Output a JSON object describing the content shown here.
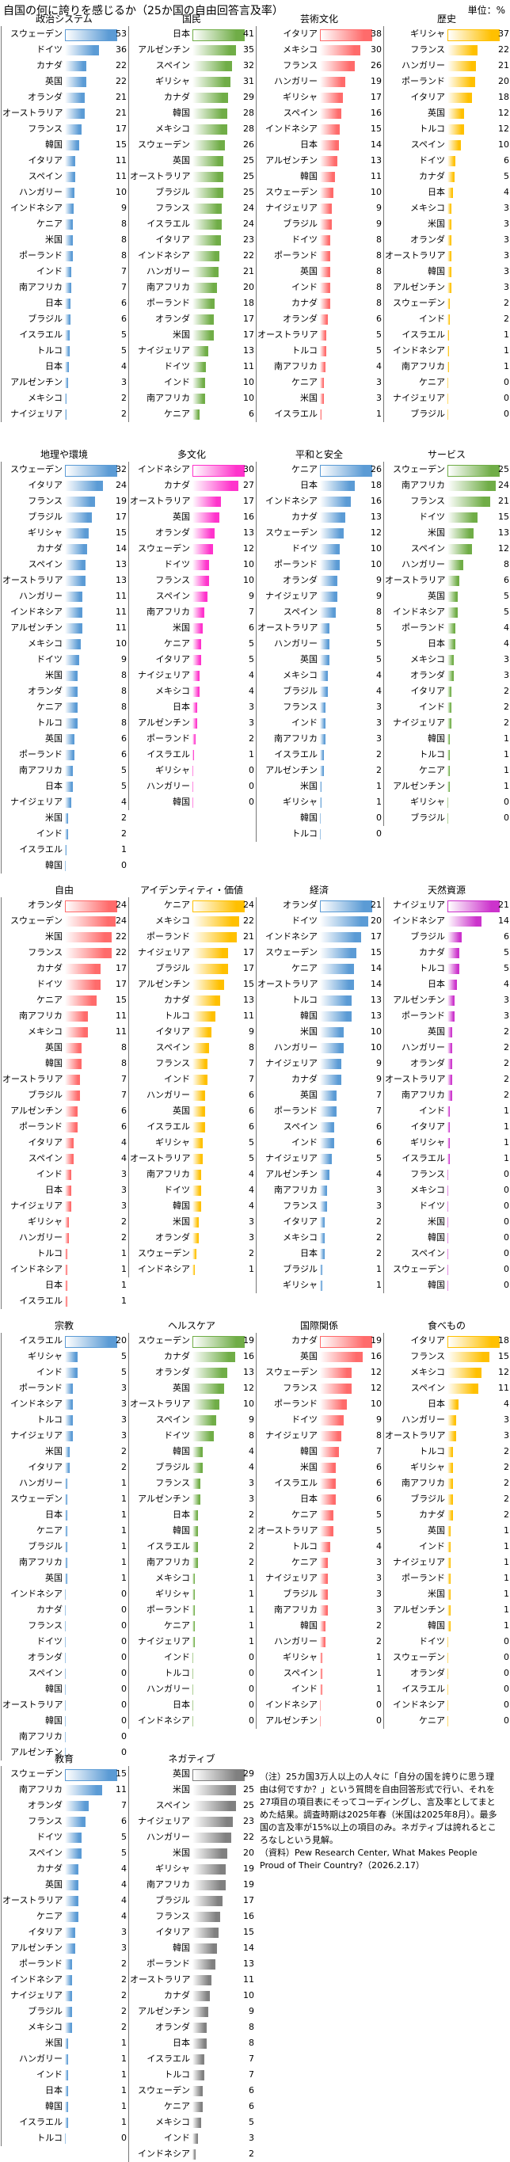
{
  "title": "自国の何に誇りを感じるか（25か国の自由回答言及率）",
  "unit": "単位：%",
  "chart_data": [
    {
      "type": "bar",
      "title": "政治システム",
      "color": "#5b9bd5",
      "categories": [
        "スウェーデン",
        "ドイツ",
        "カナダ",
        "英国",
        "オランダ",
        "オーストラリア",
        "フランス",
        "韓国",
        "イタリア",
        "スペイン",
        "ハンガリー",
        "インドネシア",
        "ケニア",
        "米国",
        "ポーランド",
        "インド",
        "南アフリカ",
        "日本",
        "ブラジル",
        "イスラエル",
        "トルコ",
        "日本",
        "アルゼンチン",
        "メキシコ",
        "ナイジェリア"
      ],
      "values": [
        53,
        36,
        22,
        22,
        21,
        21,
        17,
        15,
        11,
        11,
        10,
        9,
        8,
        8,
        8,
        7,
        7,
        6,
        6,
        5,
        5,
        4,
        3,
        2,
        2
      ]
    },
    {
      "type": "bar",
      "title": "国民",
      "color": "#70ad47",
      "categories": [
        "日本",
        "アルゼンチン",
        "スペイン",
        "ギリシャ",
        "カナダ",
        "韓国",
        "メキシコ",
        "スウェーデン",
        "英国",
        "オーストラリア",
        "ブラジル",
        "フランス",
        "イスラエル",
        "イタリア",
        "インドネシア",
        "ハンガリー",
        "南アフリカ",
        "ポーランド",
        "オランダ",
        "米国",
        "ナイジェリア",
        "ドイツ",
        "インド",
        "南アフリカ",
        "ケニア"
      ],
      "values": [
        41,
        35,
        32,
        31,
        29,
        28,
        28,
        26,
        25,
        25,
        25,
        24,
        24,
        23,
        22,
        21,
        20,
        18,
        17,
        17,
        13,
        11,
        10,
        10,
        6
      ]
    },
    {
      "type": "bar",
      "title": "芸術文化",
      "color": "#ff6b6b",
      "categories": [
        "イタリア",
        "メキシコ",
        "フランス",
        "ハンガリー",
        "ギリシャ",
        "スペイン",
        "インドネシア",
        "日本",
        "アルゼンチン",
        "韓国",
        "スウェーデン",
        "ナイジェリア",
        "ブラジル",
        "ドイツ",
        "ポーランド",
        "英国",
        "インド",
        "カナダ",
        "オランダ",
        "オーストラリア",
        "トルコ",
        "南アフリカ",
        "ケニア",
        "米国",
        "イスラエル"
      ],
      "values": [
        38,
        30,
        26,
        19,
        17,
        16,
        15,
        14,
        13,
        11,
        10,
        9,
        9,
        8,
        8,
        8,
        8,
        8,
        6,
        5,
        5,
        4,
        3,
        3,
        1
      ]
    },
    {
      "type": "bar",
      "title": "歴史",
      "color": "#ffc000",
      "categories": [
        "ギリシャ",
        "フランス",
        "ハンガリー",
        "ポーランド",
        "イタリア",
        "英国",
        "トルコ",
        "スペイン",
        "ドイツ",
        "カナダ",
        "日本",
        "メキシコ",
        "米国",
        "オランダ",
        "オーストラリア",
        "韓国",
        "アルゼンチン",
        "スウェーデン",
        "インド",
        "イスラエル",
        "インドネシア",
        "南アフリカ",
        "ケニア",
        "ナイジェリア",
        "ブラジル"
      ],
      "values": [
        37,
        22,
        21,
        20,
        18,
        12,
        12,
        10,
        6,
        5,
        4,
        3,
        3,
        3,
        3,
        3,
        3,
        2,
        2,
        1,
        1,
        1,
        0,
        0,
        0
      ]
    },
    {
      "type": "bar",
      "title": "地理や環境",
      "color": "#5b9bd5",
      "categories": [
        "スウェーデン",
        "イタリア",
        "フランス",
        "ブラジル",
        "ギリシャ",
        "カナダ",
        "スペイン",
        "オーストラリア",
        "ハンガリー",
        "インドネシア",
        "アルゼンチン",
        "メキシコ",
        "ドイツ",
        "米国",
        "オランダ",
        "ケニア",
        "トルコ",
        "英国",
        "ポーランド",
        "南アフリカ",
        "日本",
        "ナイジェリア",
        "米国",
        "インド",
        "イスラエル",
        "韓国"
      ],
      "values": [
        32,
        24,
        19,
        17,
        15,
        14,
        13,
        13,
        11,
        11,
        11,
        10,
        9,
        8,
        8,
        8,
        8,
        6,
        6,
        5,
        5,
        4,
        2,
        2,
        1,
        0
      ]
    },
    {
      "type": "bar",
      "title": "多文化",
      "color": "#ff33cc",
      "categories": [
        "インドネシア",
        "カナダ",
        "オーストラリア",
        "英国",
        "オランダ",
        "スウェーデン",
        "ドイツ",
        "フランス",
        "スペイン",
        "南アフリカ",
        "米国",
        "ケニア",
        "イタリア",
        "ナイジェリア",
        "メキシコ",
        "日本",
        "アルゼンチン",
        "ポーランド",
        "イスラエル",
        "ギリシャ",
        "ハンガリー",
        "韓国"
      ],
      "values": [
        30,
        27,
        17,
        16,
        13,
        12,
        10,
        10,
        9,
        7,
        6,
        5,
        5,
        4,
        4,
        3,
        3,
        2,
        1,
        0,
        0,
        0
      ]
    },
    {
      "type": "bar",
      "title": "平和と安全",
      "color": "#5b9bd5",
      "categories": [
        "ケニア",
        "日本",
        "インドネシア",
        "カナダ",
        "スウェーデン",
        "ドイツ",
        "ポーランド",
        "オランダ",
        "ナイジェリア",
        "スペイン",
        "オーストラリア",
        "ハンガリー",
        "英国",
        "メキシコ",
        "ブラジル",
        "フランス",
        "インド",
        "南アフリカ",
        "イスラエル",
        "アルゼンチン",
        "米国",
        "ギリシャ",
        "韓国",
        "トルコ"
      ],
      "values": [
        26,
        18,
        16,
        13,
        12,
        10,
        10,
        9,
        9,
        8,
        5,
        5,
        5,
        4,
        4,
        3,
        3,
        3,
        2,
        2,
        1,
        1,
        0,
        0
      ]
    },
    {
      "type": "bar",
      "title": "サービス",
      "color": "#70ad47",
      "categories": [
        "スウェーデン",
        "南アフリカ",
        "フランス",
        "ドイツ",
        "米国",
        "スペイン",
        "ハンガリー",
        "オーストラリア",
        "英国",
        "インドネシア",
        "ポーランド",
        "日本",
        "メキシコ",
        "オランダ",
        "イタリア",
        "インド",
        "ナイジェリア",
        "韓国",
        "トルコ",
        "ケニア",
        "アルゼンチン",
        "ギリシャ",
        "ブラジル"
      ],
      "values": [
        25,
        24,
        21,
        15,
        13,
        12,
        8,
        6,
        5,
        5,
        4,
        4,
        3,
        3,
        2,
        2,
        2,
        1,
        1,
        1,
        1,
        0,
        0
      ]
    },
    {
      "type": "bar",
      "title": "自由",
      "color": "#ff6b6b",
      "categories": [
        "オランダ",
        "スウェーデン",
        "米国",
        "フランス",
        "カナダ",
        "ドイツ",
        "ケニア",
        "南アフリカ",
        "メキシコ",
        "英国",
        "韓国",
        "オーストラリア",
        "ブラジル",
        "アルゼンチン",
        "ポーランド",
        "イタリア",
        "スペイン",
        "インド",
        "日本",
        "ナイジェリア",
        "ギリシャ",
        "ハンガリー",
        "トルコ",
        "インドネシア",
        "日本",
        "イスラエル"
      ],
      "values": [
        24,
        24,
        22,
        22,
        17,
        17,
        15,
        11,
        11,
        8,
        8,
        7,
        7,
        6,
        6,
        4,
        4,
        3,
        3,
        3,
        2,
        2,
        1,
        1,
        1,
        1
      ]
    },
    {
      "type": "bar",
      "title": "アイデンティティ・価値",
      "color": "#ffc000",
      "categories": [
        "ケニア",
        "メキシコ",
        "ポーランド",
        "ナイジェリア",
        "ブラジル",
        "アルゼンチン",
        "カナダ",
        "トルコ",
        "イタリア",
        "スペイン",
        "フランス",
        "インド",
        "ハンガリー",
        "英国",
        "イスラエル",
        "ギリシャ",
        "オーストラリア",
        "南アフリカ",
        "ドイツ",
        "韓国",
        "米国",
        "オランダ",
        "スウェーデン",
        "インドネシア"
      ],
      "values": [
        24,
        22,
        21,
        17,
        17,
        15,
        13,
        11,
        9,
        8,
        7,
        7,
        6,
        6,
        6,
        5,
        5,
        4,
        4,
        4,
        3,
        3,
        2,
        1
      ]
    },
    {
      "type": "bar",
      "title": "経済",
      "color": "#5b9bd5",
      "categories": [
        "オランダ",
        "ドイツ",
        "インドネシア",
        "スウェーデン",
        "ケニア",
        "オーストラリア",
        "トルコ",
        "韓国",
        "米国",
        "ハンガリー",
        "ナイジェリア",
        "カナダ",
        "英国",
        "ポーランド",
        "スペイン",
        "インド",
        "ナイジェリア",
        "アルゼンチン",
        "南アフリカ",
        "フランス",
        "イタリア",
        "メキシコ",
        "日本",
        "ブラジル",
        "ギリシャ"
      ],
      "values": [
        21,
        20,
        17,
        15,
        14,
        14,
        13,
        13,
        10,
        10,
        9,
        9,
        7,
        7,
        6,
        6,
        5,
        4,
        3,
        3,
        2,
        2,
        2,
        1,
        1
      ]
    },
    {
      "type": "bar",
      "title": "天然資源",
      "color": "#cc33cc",
      "categories": [
        "ナイジェリア",
        "インドネシア",
        "ブラジル",
        "カナダ",
        "トルコ",
        "日本",
        "アルゼンチン",
        "ポーランド",
        "英国",
        "ハンガリー",
        "オランダ",
        "オーストラリア",
        "南アフリカ",
        "インド",
        "イタリア",
        "ギリシャ",
        "イスラエル",
        "フランス",
        "メキシコ",
        "ドイツ",
        "米国",
        "韓国",
        "スペイン",
        "スウェーデン",
        "韓国"
      ],
      "values": [
        21,
        14,
        6,
        5,
        5,
        4,
        3,
        3,
        2,
        2,
        2,
        2,
        2,
        1,
        1,
        1,
        1,
        0,
        0,
        0,
        0,
        0,
        0,
        0,
        0
      ]
    },
    {
      "type": "bar",
      "title": "宗教",
      "color": "#5b9bd5",
      "categories": [
        "イスラエル",
        "ギリシャ",
        "インド",
        "ポーランド",
        "インドネシア",
        "トルコ",
        "ナイジェリア",
        "米国",
        "イタリア",
        "ハンガリー",
        "スウェーデン",
        "日本",
        "ケニア",
        "ブラジル",
        "南アフリカ",
        "英国",
        "インドネシア",
        "カナダ",
        "フランス",
        "ドイツ",
        "オランダ",
        "スペイン",
        "韓国",
        "オーストラリア",
        "韓国",
        "南アフリカ",
        "アルゼンチン"
      ],
      "values": [
        20,
        5,
        5,
        3,
        3,
        3,
        3,
        2,
        2,
        1,
        1,
        1,
        1,
        1,
        1,
        1,
        0,
        0,
        0,
        0,
        0,
        0,
        0,
        0,
        0,
        0,
        0
      ]
    },
    {
      "type": "bar",
      "title": "ヘルスケア",
      "color": "#70ad47",
      "categories": [
        "スウェーデン",
        "カナダ",
        "オランダ",
        "英国",
        "オーストラリア",
        "スペイン",
        "ドイツ",
        "韓国",
        "ブラジル",
        "フランス",
        "アルゼンチン",
        "日本",
        "韓国",
        "イスラエル",
        "南アフリカ",
        "メキシコ",
        "ギリシャ",
        "ポーランド",
        "ケニア",
        "ナイジェリア",
        "インド",
        "トルコ",
        "ハンガリー",
        "日本",
        "インドネシア"
      ],
      "values": [
        19,
        16,
        13,
        12,
        10,
        9,
        8,
        4,
        4,
        3,
        3,
        2,
        2,
        2,
        2,
        1,
        1,
        1,
        1,
        1,
        0,
        0,
        0,
        0,
        0
      ]
    },
    {
      "type": "bar",
      "title": "国際関係",
      "color": "#ff6b6b",
      "categories": [
        "カナダ",
        "英国",
        "スウェーデン",
        "フランス",
        "ポーランド",
        "ドイツ",
        "ナイジェリア",
        "韓国",
        "米国",
        "イスラエル",
        "日本",
        "ケニア",
        "オーストラリア",
        "トルコ",
        "ケニア",
        "ナイジェリア",
        "ブラジル",
        "南アフリカ",
        "韓国",
        "ハンガリー",
        "ギリシャ",
        "スペイン",
        "インド",
        "インドネシア",
        "アルゼンチン"
      ],
      "values": [
        19,
        16,
        12,
        12,
        10,
        9,
        8,
        7,
        6,
        6,
        6,
        5,
        5,
        4,
        3,
        3,
        3,
        3,
        2,
        2,
        1,
        1,
        1,
        0,
        0
      ]
    },
    {
      "type": "bar",
      "title": "食べもの",
      "color": "#ffc000",
      "categories": [
        "イタリア",
        "フランス",
        "メキシコ",
        "スペイン",
        "日本",
        "ハンガリー",
        "オーストラリア",
        "トルコ",
        "ギリシャ",
        "南アフリカ",
        "ブラジル",
        "カナダ",
        "英国",
        "インド",
        "ナイジェリア",
        "ポーランド",
        "米国",
        "アルゼンチン",
        "韓国",
        "ドイツ",
        "スウェーデン",
        "オランダ",
        "イスラエル",
        "インドネシア",
        "ケニア"
      ],
      "values": [
        18,
        15,
        12,
        11,
        4,
        3,
        3,
        2,
        2,
        2,
        2,
        2,
        1,
        1,
        1,
        1,
        1,
        1,
        1,
        0,
        0,
        0,
        0,
        0,
        0
      ]
    },
    {
      "type": "bar",
      "title": "教育",
      "color": "#5b9bd5",
      "categories": [
        "スウェーデン",
        "南アフリカ",
        "オランダ",
        "フランス",
        "ドイツ",
        "スペイン",
        "カナダ",
        "英国",
        "オーストラリア",
        "ケニア",
        "イタリア",
        "アルゼンチン",
        "ポーランド",
        "インドネシア",
        "ナイジェリア",
        "ブラジル",
        "メキシコ",
        "米国",
        "ハンガリー",
        "インド",
        "日本",
        "韓国",
        "イスラエル",
        "トルコ"
      ],
      "values": [
        15,
        11,
        7,
        6,
        5,
        5,
        4,
        4,
        4,
        4,
        3,
        3,
        2,
        2,
        2,
        2,
        2,
        1,
        1,
        1,
        1,
        1,
        1,
        0
      ]
    },
    {
      "type": "bar",
      "title": "ネガティブ",
      "color": "#808080",
      "categories": [
        "英国",
        "米国",
        "スペイン",
        "ナイジェリア",
        "ハンガリー",
        "米国",
        "ギリシャ",
        "南アフリカ",
        "ブラジル",
        "フランス",
        "イタリア",
        "韓国",
        "ポーランド",
        "オーストラリア",
        "カナダ",
        "アルゼンチン",
        "オランダ",
        "日本",
        "イスラエル",
        "トルコ",
        "スウェーデン",
        "ケニア",
        "メキシコ",
        "インド",
        "インドネシア"
      ],
      "values": [
        29,
        25,
        25,
        23,
        22,
        20,
        19,
        19,
        17,
        16,
        15,
        14,
        13,
        11,
        10,
        9,
        8,
        8,
        7,
        7,
        6,
        6,
        5,
        3,
        2
      ]
    }
  ],
  "notes": [
    "（注）25カ国3万人以上の人々に「自分の国を誇りに思う理由は何ですか？」という質問を自由回答形式で行い、それを27項目の項目表にそってコーディングし、言及率としてまとめた結果。調査時期は2025年春（米国は2025年8月）。最多国の言及率が15%以上の項目のみ。ネガティブは誇れるところなしという見解。",
    "（資料）Pew Research Center, What Makes People Proud of Their Country?（2026.2.17）"
  ]
}
